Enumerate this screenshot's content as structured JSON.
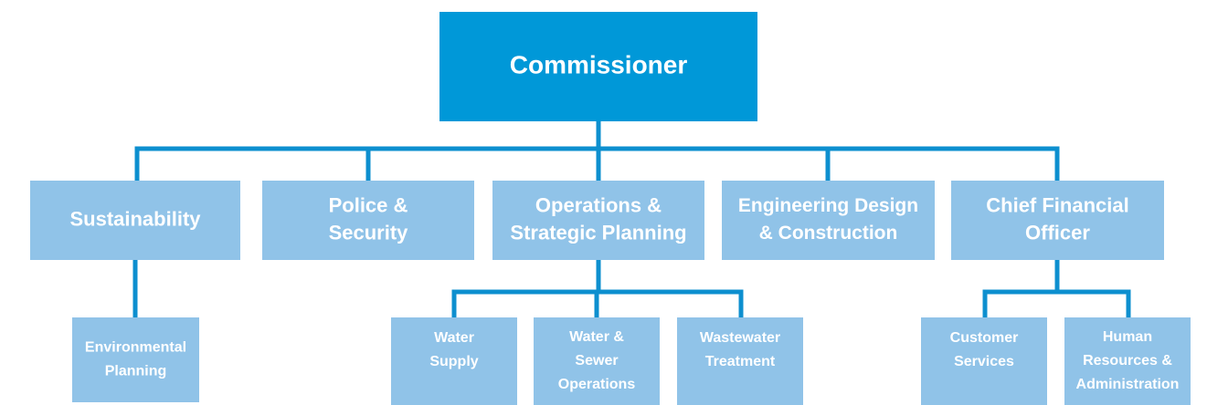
{
  "nodes": [
    {
      "lines": [
        "Commissioner"
      ]
    },
    {
      "lines": [
        "Sustainability"
      ]
    },
    {
      "lines": [
        "Police &",
        "Security"
      ]
    },
    {
      "lines": [
        "Operations &",
        "Strategic Planning"
      ]
    },
    {
      "lines": [
        "Engineering Design",
        "& Construction"
      ]
    },
    {
      "lines": [
        "Chief Financial",
        "Officer"
      ]
    },
    {
      "lines": [
        "Environmental",
        "Planning"
      ]
    },
    {
      "lines": [
        "Water",
        "Supply"
      ]
    },
    {
      "lines": [
        "Water &",
        "Sewer",
        "Operations"
      ]
    },
    {
      "lines": [
        "Wastewater",
        "Treatment"
      ]
    },
    {
      "lines": [
        "Customer",
        "Services"
      ]
    },
    {
      "lines": [
        "Human",
        "Resources &",
        "Administration"
      ]
    }
  ]
}
